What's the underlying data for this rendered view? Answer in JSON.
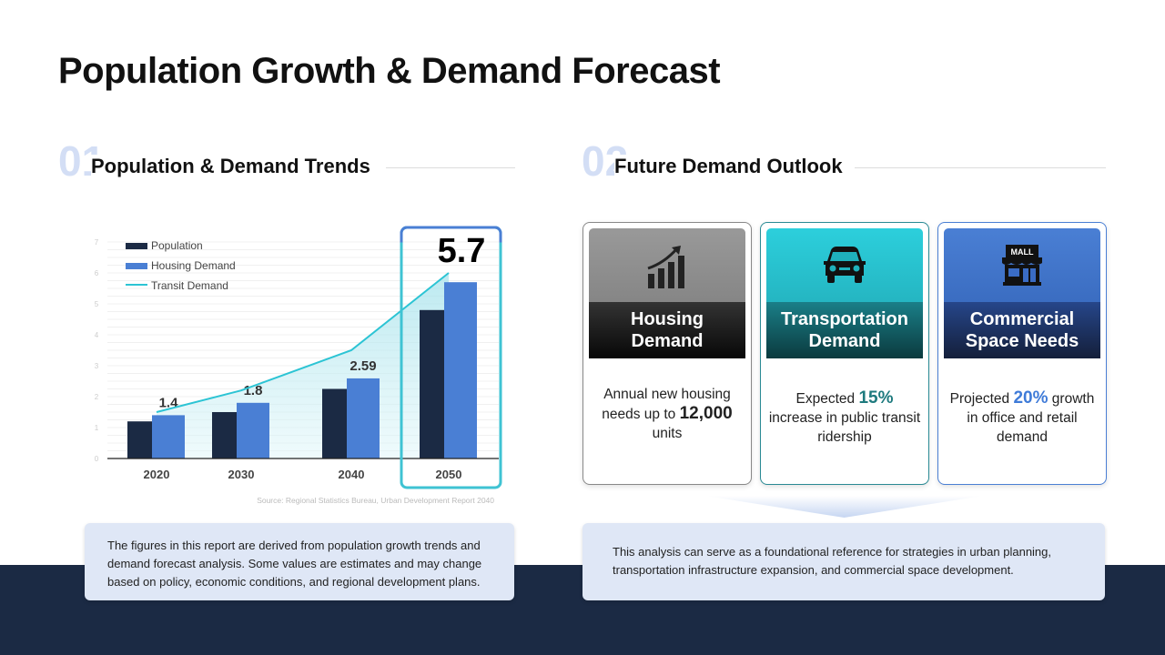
{
  "title": "Population Growth & Demand Forecast",
  "section1": {
    "num": "01",
    "title": "Population & Demand Trends"
  },
  "section2": {
    "num": "02",
    "title": "Future Demand Outlook"
  },
  "chart_data": {
    "type": "bar",
    "categories": [
      "2020",
      "2030",
      "2040",
      "2050"
    ],
    "series": [
      {
        "name": "Population",
        "type": "bar",
        "color": "#1b2a44",
        "values": [
          1.2,
          1.5,
          2.25,
          4.8
        ]
      },
      {
        "name": "Housing Demand",
        "type": "bar",
        "color": "#4a7fd4",
        "values": [
          1.4,
          1.8,
          2.59,
          5.7
        ]
      },
      {
        "name": "Transit Demand",
        "type": "line",
        "color": "#2cc4d4",
        "values": [
          1.5,
          2.2,
          3.5,
          6.0
        ]
      }
    ],
    "data_labels": [
      "1.4",
      "1.8",
      "2.59",
      "5.7"
    ],
    "yticks": [
      "0",
      "1",
      "2",
      "3",
      "4",
      "5",
      "6",
      "7"
    ],
    "ylim": [
      0,
      7
    ],
    "highlight": "2050",
    "legend_position": "top-left",
    "source": "Source: Regional Statistics Bureau, Urban Development Report 2040"
  },
  "cards": [
    {
      "title1": "Housing",
      "title2": "Demand",
      "icon": "chart-growth-icon",
      "pre": "Annual new housing needs up to ",
      "value": "12,000",
      "post": " units"
    },
    {
      "title1": "Transportation",
      "title2": "Demand",
      "icon": "car-icon",
      "pre": "Expected ",
      "value": "15%",
      "post": " increase in public transit ridership",
      "accent": "#1e7a7e"
    },
    {
      "title1": "Commercial",
      "title2": "Space Needs",
      "icon": "mall-icon",
      "icon_text": "MALL",
      "pre": "Projected ",
      "value": "20%",
      "post": " growth in office and retail demand",
      "accent": "#3f7bd8"
    }
  ],
  "note_left": "The figures in this report are derived from population growth trends and demand forecast analysis. Some values are estimates and may change based on policy, economic conditions, and regional development plans.",
  "note_right": "This analysis can serve as a foundational reference for strategies in urban planning, transportation infrastructure expansion, and commercial space development."
}
